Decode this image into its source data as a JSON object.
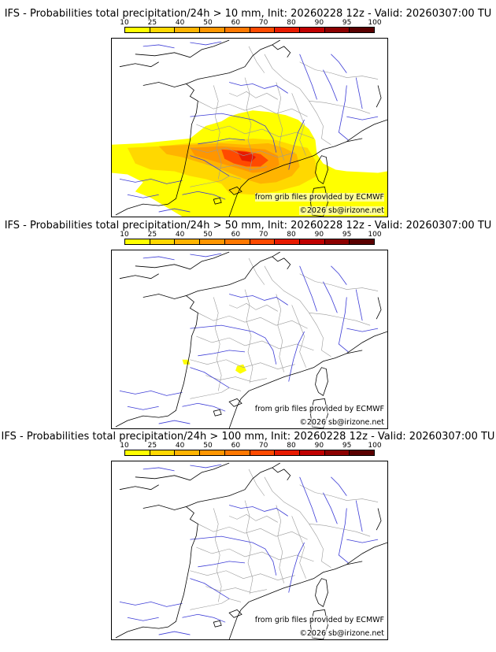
{
  "panels": [
    {
      "title": "IFS - Probabilities total precipitation/24h > 10 mm, Init: 20260228 12z - Valid: 20260307:00 TU",
      "threshold_mm": 10,
      "has_field": true
    },
    {
      "title": "IFS - Probabilities total precipitation/24h > 50 mm, Init: 20260228 12z - Valid: 20260307:00 TU",
      "threshold_mm": 50,
      "has_field": "small"
    },
    {
      "title": "IFS - Probabilities total precipitation/24h > 100 mm, Init: 20260228 12z - Valid: 20260307:00 TU",
      "threshold_mm": 100,
      "has_field": false
    }
  ],
  "colorbar": {
    "ticks": [
      "10",
      "25",
      "40",
      "50",
      "60",
      "70",
      "80",
      "90",
      "95",
      "100"
    ],
    "colors": [
      "#ffff00",
      "#ffd800",
      "#ffb400",
      "#ff9600",
      "#ff7800",
      "#ff4a00",
      "#e81a00",
      "#c00000",
      "#8c0000",
      "#5a0000"
    ]
  },
  "credits": {
    "source": "from grib files provided by ECMWF",
    "copyright": "©2026 sb@irizone.net"
  },
  "style": {
    "river_color": "#3b3bd6",
    "border_color": "#9a9a9a",
    "coast_color": "#000000"
  }
}
